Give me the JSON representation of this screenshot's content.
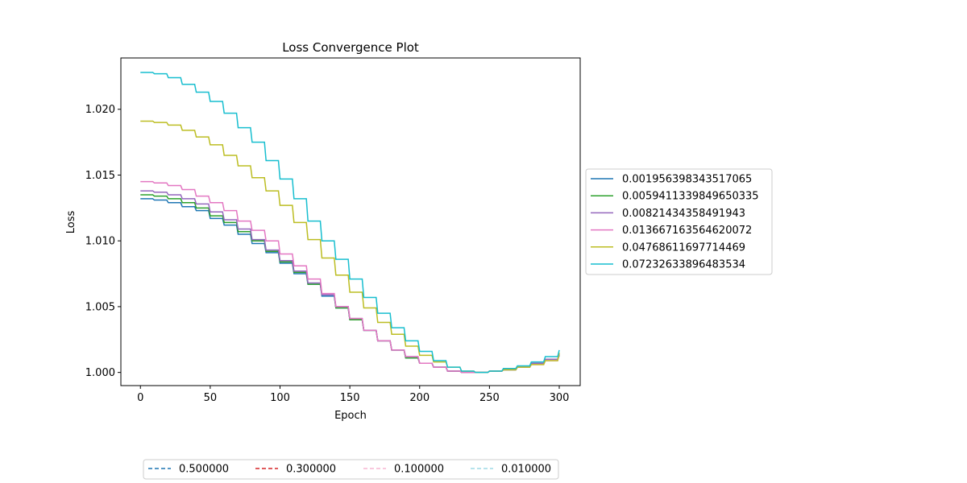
{
  "chart_data": {
    "type": "line",
    "title": "Loss Convergence Plot",
    "xlabel": "Epoch",
    "ylabel": "Loss",
    "xlim": [
      -14,
      315
    ],
    "ylim": [
      0.999,
      1.0239
    ],
    "x_ticks": [
      0,
      50,
      100,
      150,
      200,
      250,
      300
    ],
    "y_ticks": [
      1.0,
      1.005,
      1.01,
      1.015,
      1.02
    ],
    "x_tick_labels": [
      "0",
      "50",
      "100",
      "150",
      "200",
      "250",
      "300"
    ],
    "y_tick_labels": [
      "1.000",
      "1.005",
      "1.010",
      "1.015",
      "1.020"
    ],
    "grid": false,
    "legend_position": "right",
    "x": [
      0,
      10,
      20,
      30,
      40,
      50,
      60,
      70,
      80,
      90,
      100,
      110,
      120,
      130,
      140,
      150,
      160,
      170,
      180,
      190,
      200,
      210,
      220,
      230,
      240,
      250,
      260,
      270,
      280,
      290,
      300
    ],
    "series": [
      {
        "name": "0.001956398343517065",
        "color": "#1f77b4",
        "values": [
          1.0132,
          1.0131,
          1.0129,
          1.0126,
          1.0123,
          1.0117,
          1.0112,
          1.0105,
          1.0098,
          1.0091,
          1.0083,
          1.0075,
          1.0067,
          1.0058,
          1.0049,
          1.004,
          1.0032,
          1.0024,
          1.0017,
          1.0011,
          1.0007,
          1.0004,
          1.0001,
          1.0,
          1.0,
          1.0001,
          1.0002,
          1.0004,
          1.0007,
          1.001,
          1.0013
        ]
      },
      {
        "name": "0.0059411339849650335",
        "color": "#2ca02c",
        "values": [
          1.0135,
          1.0134,
          1.0132,
          1.0129,
          1.0125,
          1.0119,
          1.0114,
          1.0107,
          1.01,
          1.0092,
          1.0084,
          1.0076,
          1.0067,
          1.0059,
          1.0049,
          1.004,
          1.0032,
          1.0024,
          1.0017,
          1.0011,
          1.0007,
          1.0004,
          1.0001,
          1.0,
          1.0,
          1.0001,
          1.0002,
          1.0004,
          1.0007,
          1.001,
          1.0013
        ]
      },
      {
        "name": "0.00821434358491943",
        "color": "#9467bd",
        "values": [
          1.0138,
          1.0137,
          1.0135,
          1.0132,
          1.0128,
          1.0122,
          1.0116,
          1.0109,
          1.0101,
          1.0093,
          1.0085,
          1.0077,
          1.0068,
          1.0059,
          1.005,
          1.0041,
          1.0032,
          1.0024,
          1.0017,
          1.0012,
          1.0007,
          1.0004,
          1.0001,
          1.0,
          1.0,
          1.0001,
          1.0002,
          1.0004,
          1.0007,
          1.001,
          1.0014
        ]
      },
      {
        "name": "0.013667163564620072",
        "color": "#e377c2",
        "values": [
          1.0145,
          1.0144,
          1.0142,
          1.0139,
          1.0134,
          1.0129,
          1.0123,
          1.0115,
          1.0108,
          1.01,
          1.009,
          1.0081,
          1.0071,
          1.006,
          1.005,
          1.0041,
          1.0032,
          1.0024,
          1.0017,
          1.0012,
          1.0007,
          1.0004,
          1.0001,
          1.0,
          1.0,
          1.0001,
          1.0002,
          1.0004,
          1.0006,
          1.0009,
          1.0014
        ]
      },
      {
        "name": "0.04768611697714469",
        "color": "#bcbd22",
        "values": [
          1.0191,
          1.019,
          1.0188,
          1.0184,
          1.0179,
          1.0173,
          1.0165,
          1.0157,
          1.0148,
          1.0138,
          1.0127,
          1.0114,
          1.0101,
          1.0087,
          1.0074,
          1.0061,
          1.0049,
          1.0038,
          1.0029,
          1.002,
          1.0013,
          1.0008,
          1.0004,
          1.0001,
          1.0,
          1.0001,
          1.0002,
          1.0004,
          1.0006,
          1.0009,
          1.0015
        ]
      },
      {
        "name": "0.07232633896483534",
        "color": "#17becf",
        "values": [
          1.0228,
          1.0227,
          1.0224,
          1.0219,
          1.0213,
          1.0206,
          1.0197,
          1.0186,
          1.0175,
          1.0161,
          1.0147,
          1.0132,
          1.0115,
          1.01,
          1.0086,
          1.0071,
          1.0057,
          1.0045,
          1.0034,
          1.0024,
          1.0016,
          1.0009,
          1.0004,
          1.0001,
          1.0,
          1.0001,
          1.0003,
          1.0005,
          1.0008,
          1.0012,
          1.0017
        ]
      }
    ],
    "reference_legend": [
      {
        "label": "0.500000",
        "color": "#1f77b4"
      },
      {
        "label": "0.300000",
        "color": "#d62728"
      },
      {
        "label": "0.100000",
        "color": "#f7b6d2"
      },
      {
        "label": "0.010000",
        "color": "#9edae5"
      }
    ]
  }
}
